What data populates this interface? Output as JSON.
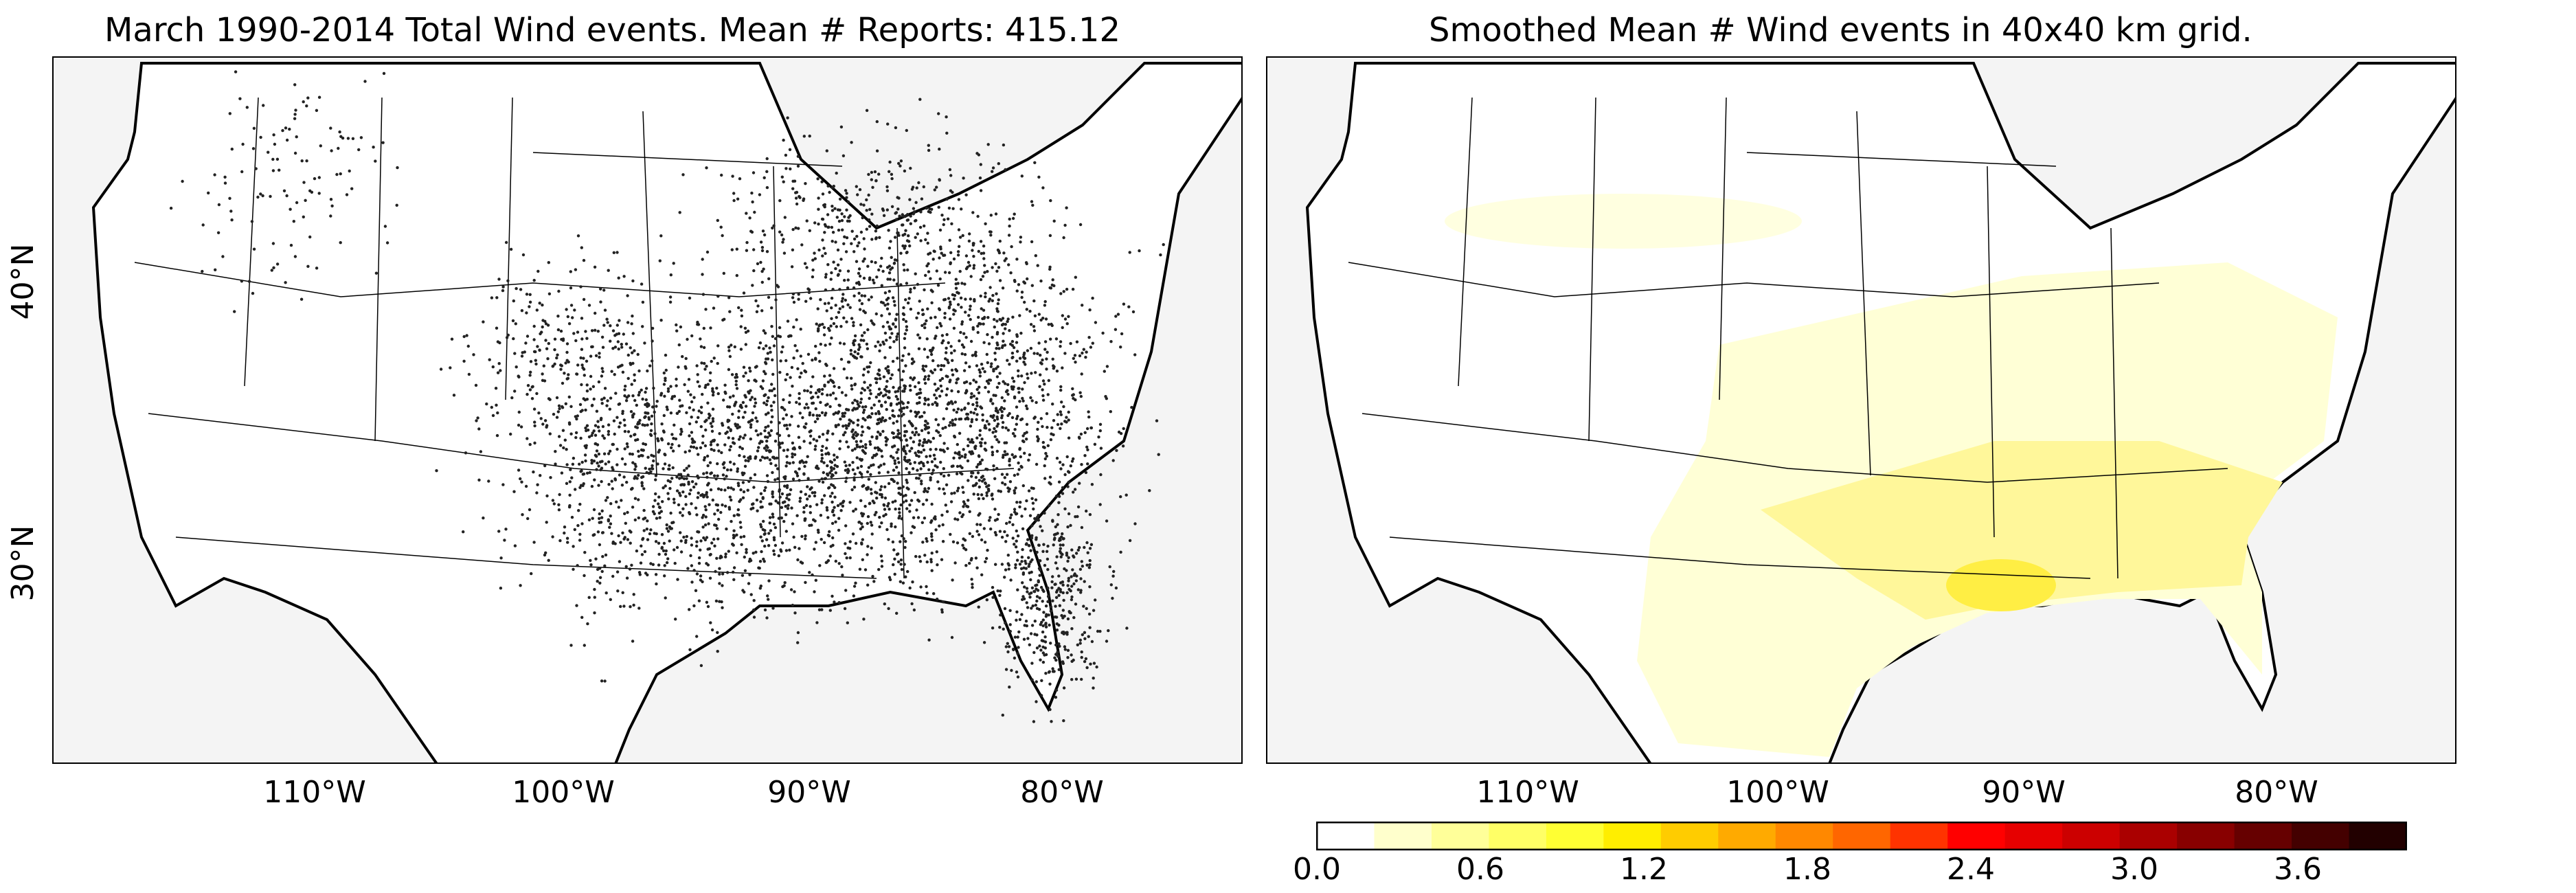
{
  "left_panel": {
    "title": "March 1990-2014 Total Wind events. Mean # Reports: 415.12",
    "lon_labels": [
      "110°W",
      "100°W",
      "90°W",
      "80°W"
    ],
    "lat_labels": [
      "40°N",
      "30°N"
    ]
  },
  "right_panel": {
    "title": "Smoothed Mean # Wind events in 40x40 km grid.",
    "lon_labels": [
      "110°W",
      "100°W",
      "90°W",
      "80°W"
    ]
  },
  "colorbar": {
    "tick_labels": [
      "0.0",
      "0.6",
      "1.2",
      "1.8",
      "2.4",
      "3.0",
      "3.6"
    ],
    "range": [
      0.0,
      4.0
    ],
    "colors": [
      "#ffffff",
      "#ffffcc",
      "#ffff99",
      "#ffff66",
      "#ffff33",
      "#ffee00",
      "#ffcc00",
      "#ffaa00",
      "#ff8800",
      "#ff6600",
      "#ff3300",
      "#ff0000",
      "#e60000",
      "#cc0000",
      "#aa0000",
      "#880000",
      "#660000",
      "#440000",
      "#220000"
    ]
  },
  "colors": {
    "land": "#ffffff",
    "ocean": "#f4f4f4",
    "report_dot": "#222222",
    "low_density": "#ffffd6",
    "mid_density": "#fff79a",
    "high_density": "#ffee44"
  }
}
